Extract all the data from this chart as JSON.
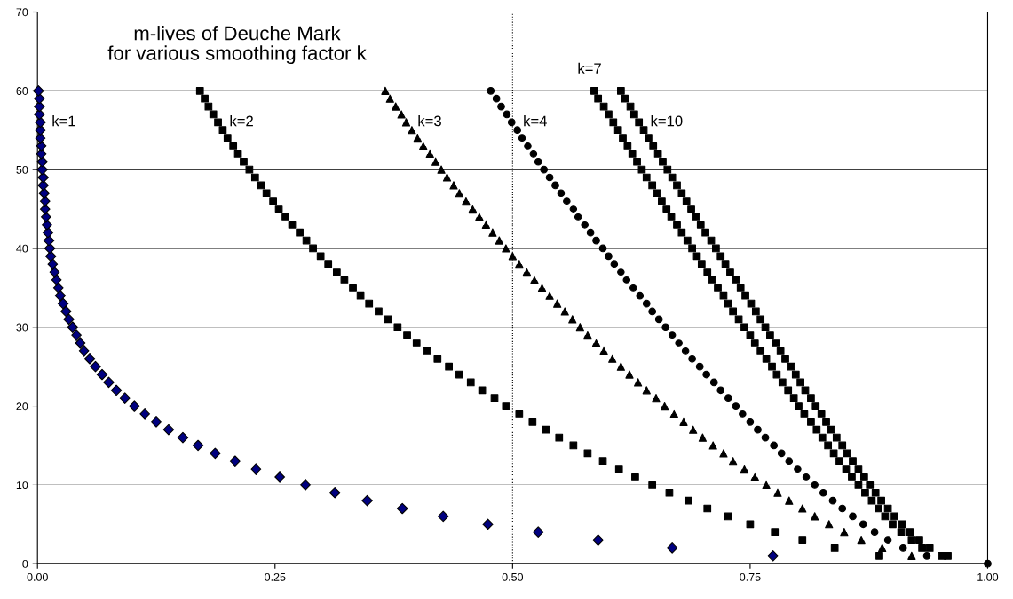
{
  "chart_data": {
    "type": "scatter",
    "title": "m-lives of Deuche Mark\nfor various smoothing factor k",
    "xlim": [
      0,
      1
    ],
    "ylim": [
      0,
      70
    ],
    "xticks": [
      {
        "value": 0,
        "label": "0.00"
      },
      {
        "value": 0.25,
        "label": "0.25"
      },
      {
        "value": 0.5,
        "label": "0.50"
      },
      {
        "value": 0.75,
        "label": "0.75"
      },
      {
        "value": 1,
        "label": "1.00"
      }
    ],
    "yticks": [
      0,
      10,
      20,
      30,
      40,
      50,
      60,
      70
    ],
    "grid": "y",
    "legend": false,
    "ref_lines": [
      {
        "axis": "x",
        "value": 0.5,
        "line_style": "dotted",
        "color": "#000000"
      }
    ],
    "series": [
      {
        "name": "k=1",
        "color": "#000080",
        "marker": "diamond",
        "x": [
          0.774,
          0.668,
          0.59,
          0.527,
          0.474,
          0.427,
          0.384,
          0.347,
          0.313,
          0.282,
          0.255,
          0.23,
          0.208,
          0.187,
          0.169,
          0.153,
          0.138,
          0.125,
          0.113,
          0.102,
          0.092,
          0.083,
          0.075,
          0.068,
          0.061,
          0.055,
          0.049,
          0.045,
          0.041,
          0.037,
          0.033,
          0.03,
          0.027,
          0.024,
          0.022,
          0.02,
          0.018,
          0.016,
          0.014,
          0.013,
          0.012,
          0.011,
          0.01,
          0.009,
          0.008,
          0.008,
          0.007,
          0.006,
          0.006,
          0.005,
          0.005,
          0.004,
          0.004,
          0.003,
          0.003,
          0.003,
          0.002,
          0.002,
          0.002,
          0.001
        ],
        "values": [
          1,
          2,
          3,
          4,
          5,
          6,
          7,
          8,
          9,
          10,
          11,
          12,
          13,
          14,
          15,
          16,
          17,
          18,
          19,
          20,
          21,
          22,
          23,
          24,
          25,
          26,
          27,
          28,
          29,
          30,
          31,
          32,
          33,
          34,
          35,
          36,
          37,
          38,
          39,
          40,
          41,
          42,
          43,
          44,
          45,
          46,
          47,
          48,
          49,
          50,
          51,
          52,
          53,
          54,
          55,
          56,
          57,
          58,
          59,
          60
        ]
      },
      {
        "name": "k=2",
        "color": "#000000",
        "marker": "square",
        "x": [
          0.886,
          0.839,
          0.805,
          0.776,
          0.75,
          0.727,
          0.705,
          0.685,
          0.665,
          0.647,
          0.629,
          0.612,
          0.595,
          0.579,
          0.564,
          0.549,
          0.535,
          0.521,
          0.507,
          0.493,
          0.481,
          0.468,
          0.456,
          0.444,
          0.433,
          0.421,
          0.41,
          0.399,
          0.389,
          0.379,
          0.369,
          0.359,
          0.349,
          0.34,
          0.332,
          0.323,
          0.315,
          0.306,
          0.298,
          0.29,
          0.283,
          0.276,
          0.268,
          0.261,
          0.254,
          0.248,
          0.241,
          0.235,
          0.229,
          0.223,
          0.217,
          0.211,
          0.206,
          0.2,
          0.195,
          0.19,
          0.185,
          0.18,
          0.176,
          0.171
        ],
        "values": [
          1,
          2,
          3,
          4,
          5,
          6,
          7,
          8,
          9,
          10,
          11,
          12,
          13,
          14,
          15,
          16,
          17,
          18,
          19,
          20,
          21,
          22,
          23,
          24,
          25,
          26,
          27,
          28,
          29,
          30,
          31,
          32,
          33,
          34,
          35,
          36,
          37,
          38,
          39,
          40,
          41,
          42,
          43,
          44,
          45,
          46,
          47,
          48,
          49,
          50,
          51,
          52,
          53,
          54,
          55,
          56,
          57,
          58,
          59,
          60
        ]
      },
      {
        "name": "k=3",
        "color": "#000000",
        "marker": "triangle",
        "x": [
          0.92,
          0.889,
          0.867,
          0.849,
          0.833,
          0.818,
          0.805,
          0.791,
          0.779,
          0.767,
          0.755,
          0.744,
          0.732,
          0.722,
          0.711,
          0.7,
          0.69,
          0.68,
          0.67,
          0.66,
          0.651,
          0.641,
          0.632,
          0.623,
          0.614,
          0.605,
          0.596,
          0.588,
          0.579,
          0.571,
          0.563,
          0.555,
          0.547,
          0.539,
          0.531,
          0.523,
          0.515,
          0.507,
          0.5,
          0.493,
          0.486,
          0.479,
          0.472,
          0.465,
          0.458,
          0.451,
          0.444,
          0.438,
          0.431,
          0.425,
          0.419,
          0.413,
          0.406,
          0.4,
          0.394,
          0.388,
          0.383,
          0.377,
          0.371,
          0.366
        ],
        "values": [
          1,
          2,
          3,
          4,
          5,
          6,
          7,
          8,
          9,
          10,
          11,
          12,
          13,
          14,
          15,
          16,
          17,
          18,
          19,
          20,
          21,
          22,
          23,
          24,
          25,
          26,
          27,
          28,
          29,
          30,
          31,
          32,
          33,
          34,
          35,
          36,
          37,
          38,
          39,
          40,
          41,
          42,
          43,
          44,
          45,
          46,
          47,
          48,
          49,
          50,
          51,
          52,
          53,
          54,
          55,
          56,
          57,
          58,
          59,
          60
        ]
      },
      {
        "name": "k=4",
        "color": "#000000",
        "marker": "circle",
        "x": [
          0.936,
          0.911,
          0.895,
          0.881,
          0.869,
          0.858,
          0.847,
          0.837,
          0.827,
          0.818,
          0.809,
          0.8,
          0.791,
          0.783,
          0.775,
          0.766,
          0.758,
          0.75,
          0.742,
          0.735,
          0.727,
          0.719,
          0.712,
          0.704,
          0.697,
          0.689,
          0.682,
          0.675,
          0.668,
          0.661,
          0.654,
          0.647,
          0.641,
          0.634,
          0.627,
          0.62,
          0.614,
          0.607,
          0.601,
          0.595,
          0.588,
          0.582,
          0.576,
          0.569,
          0.564,
          0.557,
          0.551,
          0.545,
          0.539,
          0.533,
          0.527,
          0.522,
          0.516,
          0.51,
          0.505,
          0.499,
          0.494,
          0.488,
          0.483,
          0.477
        ],
        "values": [
          1,
          2,
          3,
          4,
          5,
          6,
          7,
          8,
          9,
          10,
          11,
          12,
          13,
          14,
          15,
          16,
          17,
          18,
          19,
          20,
          21,
          22,
          23,
          24,
          25,
          26,
          27,
          28,
          29,
          30,
          31,
          32,
          33,
          34,
          35,
          36,
          37,
          38,
          39,
          40,
          41,
          42,
          43,
          44,
          45,
          46,
          47,
          48,
          49,
          50,
          51,
          52,
          53,
          54,
          55,
          56,
          57,
          58,
          59,
          60
        ]
      },
      {
        "name": "k=7",
        "color": "#000000",
        "marker": "square",
        "x": [
          0.952,
          0.931,
          0.92,
          0.909,
          0.9,
          0.892,
          0.885,
          0.878,
          0.871,
          0.864,
          0.857,
          0.851,
          0.844,
          0.838,
          0.832,
          0.826,
          0.82,
          0.814,
          0.807,
          0.801,
          0.796,
          0.79,
          0.784,
          0.778,
          0.773,
          0.767,
          0.761,
          0.755,
          0.75,
          0.744,
          0.738,
          0.732,
          0.727,
          0.722,
          0.716,
          0.71,
          0.705,
          0.699,
          0.694,
          0.689,
          0.684,
          0.678,
          0.673,
          0.667,
          0.662,
          0.657,
          0.652,
          0.647,
          0.641,
          0.636,
          0.631,
          0.626,
          0.621,
          0.616,
          0.611,
          0.606,
          0.601,
          0.596,
          0.59,
          0.586
        ],
        "values": [
          1,
          2,
          3,
          4,
          5,
          6,
          7,
          8,
          9,
          10,
          11,
          12,
          13,
          14,
          15,
          16,
          17,
          18,
          19,
          20,
          21,
          22,
          23,
          24,
          25,
          26,
          27,
          28,
          29,
          30,
          31,
          32,
          33,
          34,
          35,
          36,
          37,
          38,
          39,
          40,
          41,
          42,
          43,
          44,
          45,
          46,
          47,
          48,
          49,
          50,
          51,
          52,
          53,
          54,
          55,
          56,
          57,
          58,
          59,
          60
        ]
      },
      {
        "name": "k=10",
        "color": "#000000",
        "marker": "square",
        "x": [
          0.958,
          0.939,
          0.928,
          0.918,
          0.91,
          0.902,
          0.895,
          0.888,
          0.882,
          0.876,
          0.87,
          0.864,
          0.858,
          0.852,
          0.847,
          0.841,
          0.835,
          0.83,
          0.825,
          0.819,
          0.814,
          0.808,
          0.803,
          0.798,
          0.793,
          0.787,
          0.782,
          0.777,
          0.771,
          0.766,
          0.761,
          0.756,
          0.751,
          0.745,
          0.74,
          0.735,
          0.729,
          0.724,
          0.719,
          0.714,
          0.709,
          0.703,
          0.698,
          0.693,
          0.688,
          0.683,
          0.678,
          0.673,
          0.668,
          0.663,
          0.658,
          0.653,
          0.648,
          0.643,
          0.638,
          0.633,
          0.628,
          0.624,
          0.618,
          0.614
        ],
        "values": [
          1,
          2,
          3,
          4,
          5,
          6,
          7,
          8,
          9,
          10,
          11,
          12,
          13,
          14,
          15,
          16,
          17,
          18,
          19,
          20,
          21,
          22,
          23,
          24,
          25,
          26,
          27,
          28,
          29,
          30,
          31,
          32,
          33,
          34,
          35,
          36,
          37,
          38,
          39,
          40,
          41,
          42,
          43,
          44,
          45,
          46,
          47,
          48,
          49,
          50,
          51,
          52,
          53,
          54,
          55,
          56,
          57,
          58,
          59,
          60
        ]
      },
      {
        "color": "#000000",
        "marker": "circle",
        "x": [
          1.0
        ],
        "values": [
          0
        ]
      }
    ]
  }
}
